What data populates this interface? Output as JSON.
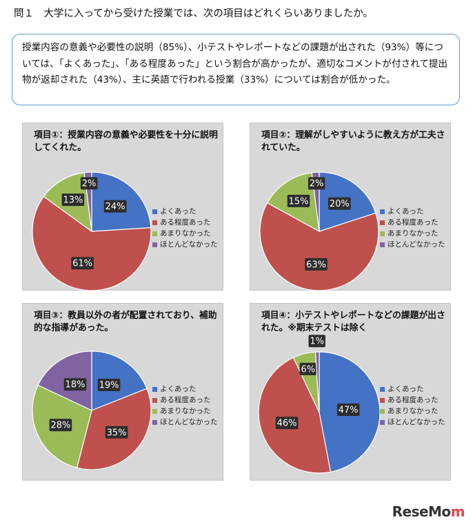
{
  "question": "問１　大学に入ってから受けた授業では、次の項目はどれくらいありましたか。",
  "summary": "授業内容の意義や必要性の説明（85%）、小テストやレポートなどの課題が出された（93%）等については、「よくあった」、「ある程度あった」という割合が高かったが、適切なコメントが付されて提出物が返却された（43%）、主に英語で行われる授業（33%）については割合が低かった。",
  "colors": {
    "series": [
      "#4472c4",
      "#c0504d",
      "#9bbb59",
      "#8064a2"
    ]
  },
  "logo": {
    "main": "ReseMo",
    "accent": "m"
  },
  "chart_data": [
    {
      "type": "pie",
      "title": "項目①：授業内容の意義や必要性を十分に説明してくれた。",
      "categories": [
        "よくあった",
        "ある程度あった",
        "あまりなかった",
        "ほとんどなかった"
      ],
      "values": [
        24,
        61,
        13,
        2
      ],
      "labels": [
        "24%",
        "61%",
        "13%",
        "2%"
      ],
      "legend": "right"
    },
    {
      "type": "pie",
      "title": "項目②：理解がしやすいように教え方が工夫されていた。",
      "categories": [
        "よくあった",
        "ある程度あった",
        "あまりなかった",
        "ほとんどなかった"
      ],
      "values": [
        20,
        63,
        15,
        2
      ],
      "labels": [
        "20%",
        "63%",
        "15%",
        "2%"
      ],
      "legend": "right"
    },
    {
      "type": "pie",
      "title": "項目③：教員以外の者が配置されており、補助的な指導があった。",
      "categories": [
        "よくあった",
        "ある程度あった",
        "あまりなかった",
        "ほとんどなかった"
      ],
      "values": [
        19,
        35,
        28,
        18
      ],
      "labels": [
        "19%",
        "35%",
        "28%",
        "18%"
      ],
      "legend": "right"
    },
    {
      "type": "pie",
      "title": "項目④：小テストやレポートなどの課題が出された。※期末テストは除く",
      "categories": [
        "よくあった",
        "ある程度あった",
        "あまりなかった",
        "ほとんどなかった"
      ],
      "values": [
        47,
        46,
        6,
        1
      ],
      "labels": [
        "47%",
        "46%",
        "6%",
        "1%"
      ],
      "legend": "right"
    }
  ]
}
